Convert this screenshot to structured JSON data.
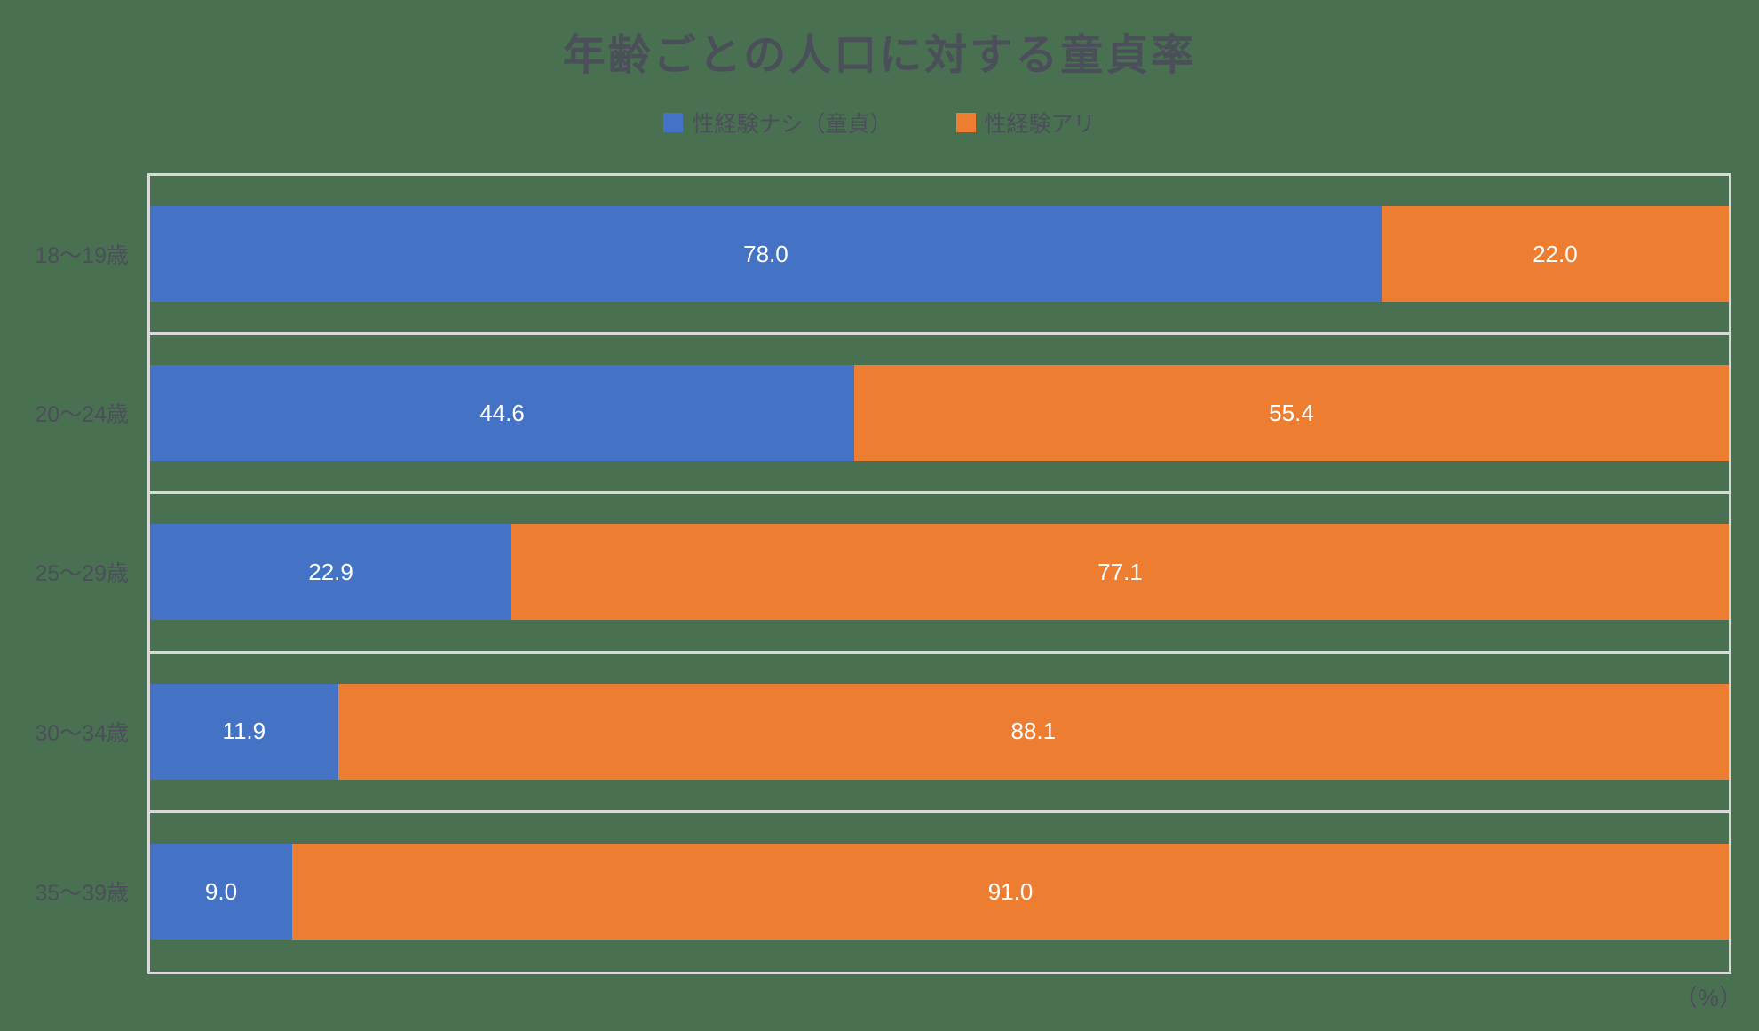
{
  "chart_data": {
    "type": "bar",
    "variant": "horizontal-stacked-100",
    "title": "年齢ごとの人口に対する童貞率",
    "unit_label": "（%）",
    "categories": [
      "18～19歳",
      "20～24歳",
      "25～29歳",
      "30～34歳",
      "35～39歳"
    ],
    "series": [
      {
        "name": "性経験ナシ（童貞）",
        "color": "#4472C4",
        "values": [
          78.0,
          44.6,
          22.9,
          11.9,
          9.0
        ],
        "labels": [
          "78.0",
          "44.6",
          "22.9",
          "11.9",
          "9.0"
        ]
      },
      {
        "name": "性経験アリ",
        "color": "#ED7D31",
        "values": [
          22.0,
          55.4,
          77.1,
          88.1,
          91.0
        ],
        "labels": [
          "22.0",
          "55.4",
          "77.1",
          "88.1",
          "91.0"
        ]
      }
    ],
    "xlim": [
      0,
      100
    ],
    "legend_position": "top",
    "grid": "category-separator-lines",
    "colors": {
      "background": "#4A7052",
      "text": "#4A4F59",
      "grid": "#D9D9D9",
      "bar_label": "#FFFFFF"
    }
  }
}
